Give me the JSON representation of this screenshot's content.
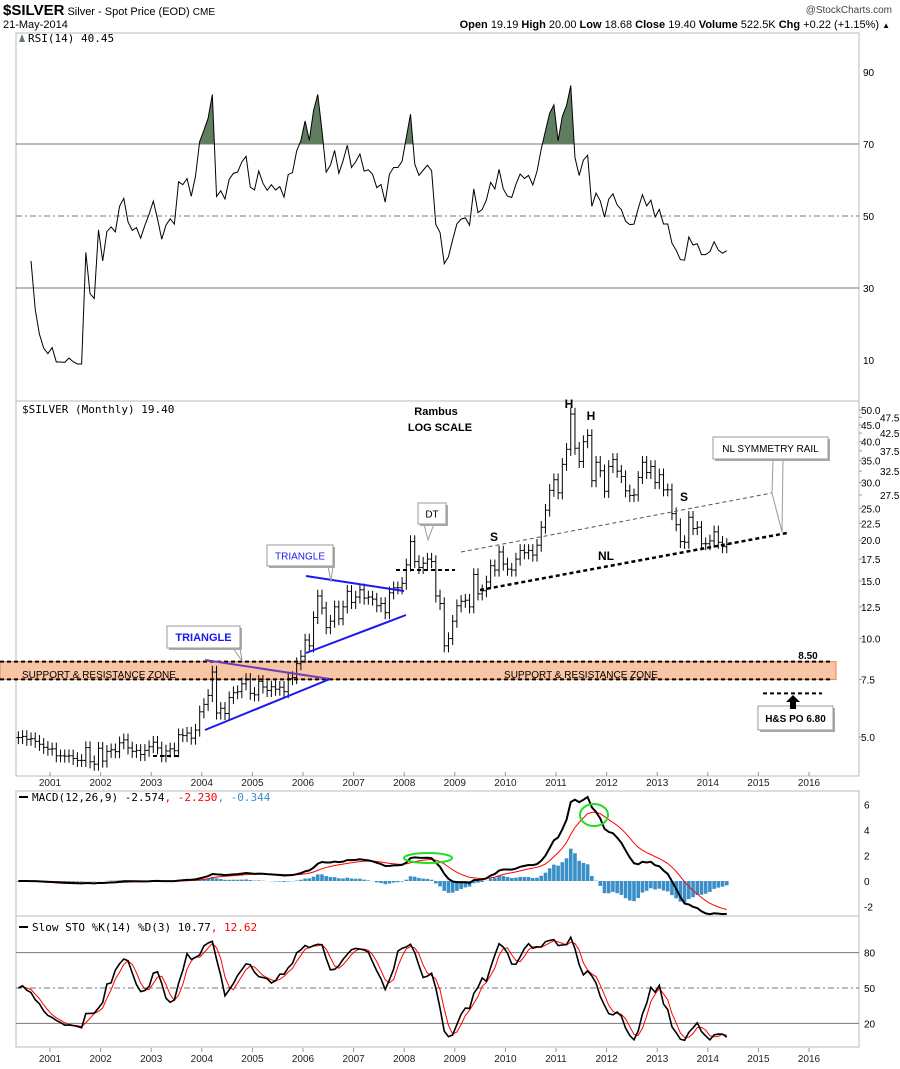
{
  "header": {
    "symbol": "$SILVER",
    "name": "Silver - Spot Price (EOD)",
    "exchange": "CME",
    "brand": "@StockCharts.com",
    "date": "21-May-2014",
    "open_label": "Open",
    "open": "19.19",
    "high_label": "High",
    "high": "20.00",
    "low_label": "Low",
    "low": "18.68",
    "close_label": "Close",
    "close": "19.40",
    "volume_label": "Volume",
    "volume": "522.5K",
    "chg_label": "Chg",
    "chg": "+0.22 (+1.15%)",
    "chg_icon": "triangle-up"
  },
  "colors": {
    "price": "#000000",
    "signal": "#ff0000",
    "histogram": "#3a8fc8",
    "rsi_fill": "#5f7d5f",
    "zone": "#f8c6a4",
    "zone_border": "#f08040",
    "triangle": "#1a1aee",
    "ellipse": "#22dd22"
  },
  "chart_data": [
    {
      "type": "line",
      "panel": "rsi",
      "legend": "RSI(14) 40.45",
      "ylim": [
        0,
        100
      ],
      "yticks": [
        "90",
        "70",
        "50",
        "30",
        "10"
      ],
      "reference_lines": [
        70,
        50,
        30
      ],
      "fill_above": 70
    },
    {
      "type": "ohlc",
      "panel": "price",
      "legend": "$SILVER (Monthly) 19.40",
      "scale": "log",
      "ylim": [
        3.7,
        52
      ],
      "start_month": "2000-05",
      "closes": [
        4.98,
        5.02,
        4.92,
        4.94,
        4.85,
        4.75,
        4.65,
        4.59,
        4.6,
        4.38,
        4.38,
        4.37,
        4.38,
        4.3,
        4.24,
        4.24,
        4.64,
        4.2,
        4.13,
        4.62,
        4.22,
        4.52,
        4.57,
        4.51,
        4.8,
        4.9,
        4.63,
        4.52,
        4.55,
        4.42,
        4.55,
        4.67,
        4.82,
        4.63,
        4.38,
        4.53,
        4.6,
        4.54,
        5.08,
        5.05,
        5.14,
        4.96,
        5.25,
        5.97,
        6.29,
        6.7,
        7.9,
        5.92,
        6.12,
        5.9,
        6.6,
        6.83,
        6.88,
        7.27,
        7.5,
        6.8,
        6.73,
        7.4,
        7.11,
        6.94,
        7.12,
        7.0,
        7.1,
        6.88,
        7.54,
        7.6,
        8.38,
        8.83,
        9.9,
        9.5,
        11.6,
        13.5,
        12.4,
        10.8,
        11.3,
        12.5,
        11.5,
        12.5,
        13.95,
        12.9,
        13.4,
        14.1,
        13.3,
        13.4,
        13.2,
        12.6,
        12.8,
        12.0,
        13.8,
        14.3,
        14.3,
        14.75,
        16.8,
        19.8,
        17.2,
        16.5,
        17.0,
        17.5,
        17.2,
        13.5,
        12.8,
        9.5,
        10.0,
        11.3,
        12.6,
        13.0,
        13.1,
        12.5,
        15.7,
        13.7,
        14.0,
        14.9,
        16.7,
        16.2,
        18.4,
        16.9,
        16.3,
        16.2,
        17.5,
        18.6,
        18.3,
        18.6,
        18.0,
        19.3,
        21.9,
        24.7,
        28.4,
        30.6,
        27.9,
        34.1,
        37.9,
        48.6,
        38.2,
        34.8,
        40.0,
        41.8,
        30.4,
        34.6,
        32.6,
        28.2,
        33.6,
        35.3,
        32.5,
        31.3,
        28.3,
        27.4,
        27.5,
        31.1,
        34.6,
        32.2,
        33.6,
        30.0,
        31.7,
        28.5,
        28.5,
        24.1,
        22.3,
        19.8,
        19.7,
        23.5,
        21.7,
        21.9,
        19.5,
        19.5,
        19.9,
        21.2,
        19.7,
        19.1,
        19.4
      ],
      "yticks": [
        "50.0",
        "47.5",
        "45.0",
        "42.5",
        "40.0",
        "37.5",
        "35.0",
        "32.5",
        "30.0",
        "27.5",
        "25.0",
        "22.5",
        "20.0",
        "17.5",
        "15.0",
        "12.5",
        "10.0",
        "7.5",
        "5.0"
      ],
      "xticks": [
        "2001",
        "2002",
        "2003",
        "2004",
        "2005",
        "2006",
        "2007",
        "2008",
        "2009",
        "2010",
        "2011",
        "2012",
        "2013",
        "2014",
        "2015",
        "2016"
      ],
      "levels": [
        8.5,
        7.5,
        6.8
      ],
      "annotations": {
        "rambus": "Rambus",
        "log_scale": "LOG SCALE",
        "head1": "H",
        "head2": "H",
        "left_shoulder": "S",
        "right_shoulder": "S",
        "neckline": "NL",
        "symmetry_rail": "NL SYMMETRY RAIL",
        "double_top": "DT",
        "triangle1": "TRIANGLE",
        "triangle2": "TRIANGLE",
        "zone_left": "SUPPORT & RESISTANCE ZONE",
        "zone_right": "SUPPORT & RESISTANCE ZONE",
        "level_850": "8.50",
        "target": "H&S PO 6.80"
      }
    },
    {
      "type": "line+histogram",
      "panel": "macd",
      "legend_main": "MACD(12,26,9) -2.574",
      "legend_signal": ", -2.230",
      "legend_hist": ", -0.344",
      "ylim": [
        -3,
        7.5
      ],
      "yticks": [
        "6",
        "4",
        "2",
        "0",
        "-2"
      ]
    },
    {
      "type": "line",
      "panel": "stochastic",
      "legend_main": "Slow STO %K(14) %D(3) 10.77",
      "legend_d": ", 12.62",
      "ylim": [
        0,
        100
      ],
      "yticks": [
        "80",
        "50",
        "20"
      ],
      "reference_lines": [
        80,
        50,
        20
      ]
    }
  ]
}
